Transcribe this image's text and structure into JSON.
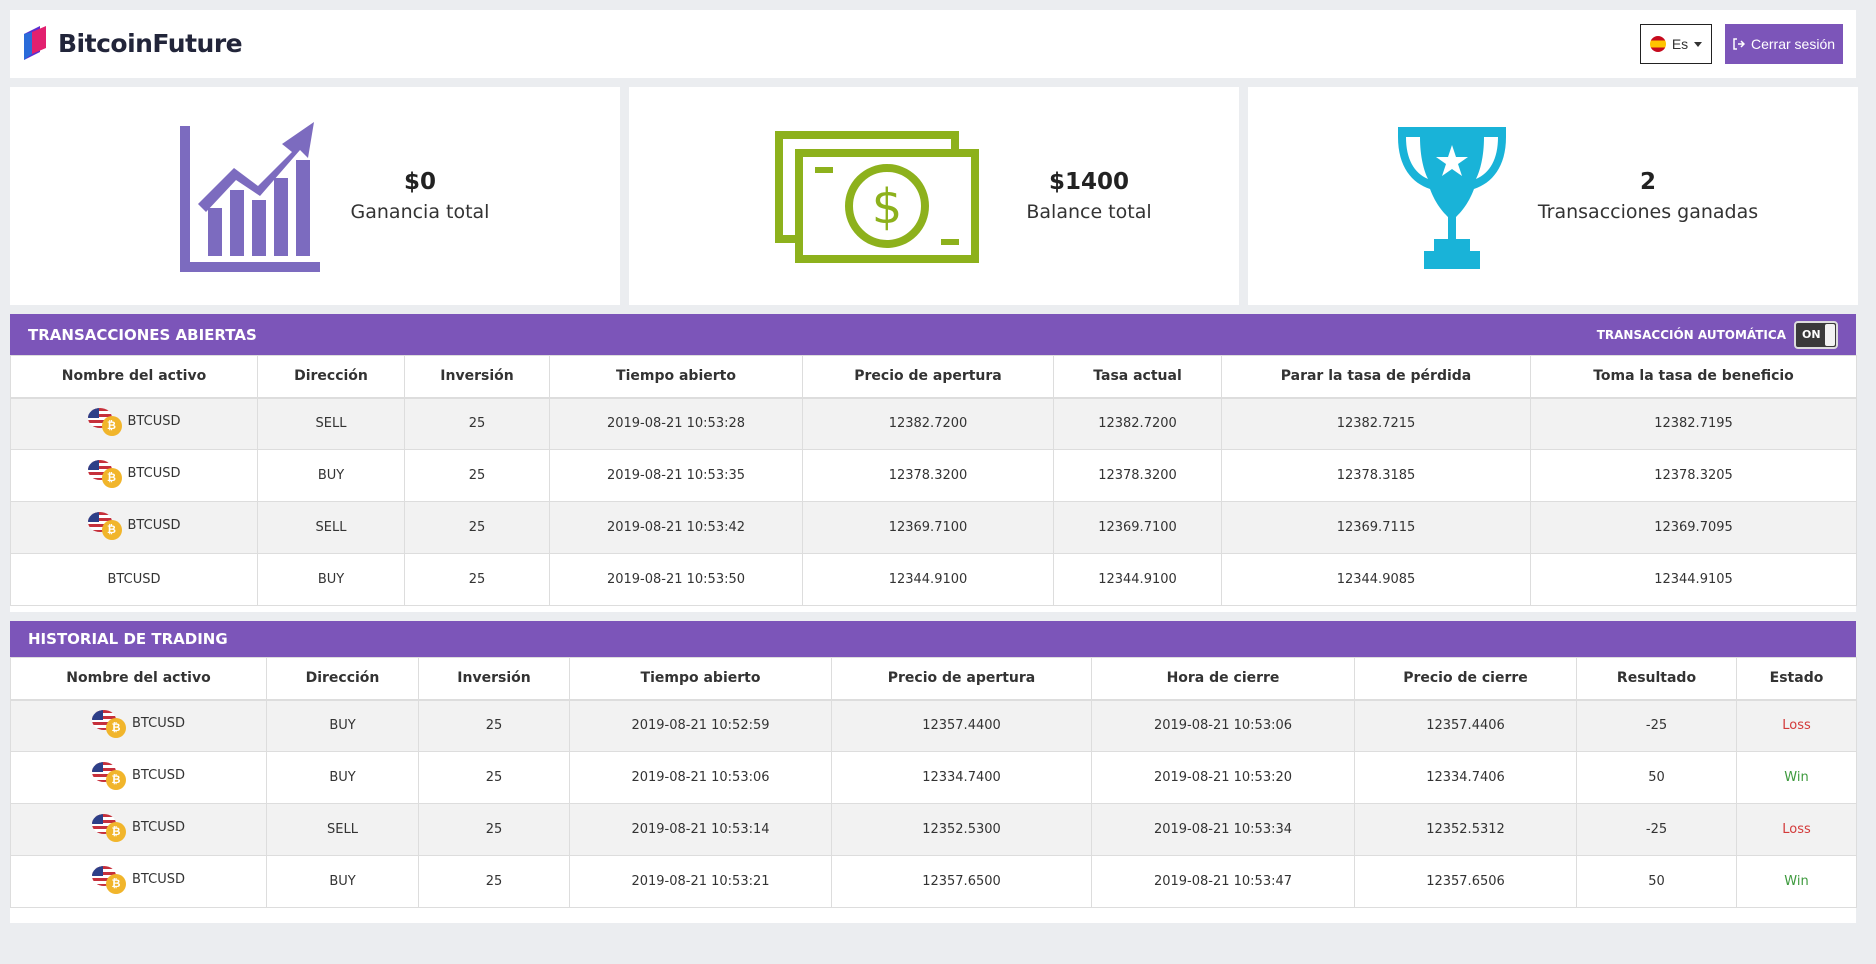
{
  "brand": {
    "name": "BitcoinFuture"
  },
  "header": {
    "lang_label": "Es",
    "logout_label": "Cerrar sesión"
  },
  "colors": {
    "accent": "#7c55b9",
    "chart_icon": "#7c6bbf",
    "money_icon": "#8db11c",
    "trophy_icon": "#19b3d8",
    "loss": "#d33a3a",
    "win": "#3e9a3e"
  },
  "stats": [
    {
      "value": "$0",
      "label": "Ganancia total",
      "icon": "growth-chart-icon"
    },
    {
      "value": "$1400",
      "label": "Balance total",
      "icon": "cash-icon"
    },
    {
      "value": "2",
      "label": "Transacciones ganadas",
      "icon": "trophy-icon"
    }
  ],
  "open_trades": {
    "title": "TRANSACCIONES ABIERTAS",
    "auto_label": "TRANSACCIÓN AUTOMÁTICA",
    "toggle_label": "ON",
    "columns": [
      "Nombre del activo",
      "Dirección",
      "Inversión",
      "Tiempo abierto",
      "Precio de apertura",
      "Tasa actual",
      "Parar la tasa de pérdida",
      "Toma la tasa de beneficio"
    ],
    "rows": [
      {
        "asset": "BTCUSD",
        "direction": "SELL",
        "investment": "25",
        "opened": "2019-08-21 10:53:28",
        "open_price": "12382.7200",
        "current_rate": "12382.7200",
        "stop_loss": "12382.7215",
        "take_profit": "12382.7195"
      },
      {
        "asset": "BTCUSD",
        "direction": "BUY",
        "investment": "25",
        "opened": "2019-08-21 10:53:35",
        "open_price": "12378.3200",
        "current_rate": "12378.3200",
        "stop_loss": "12378.3185",
        "take_profit": "12378.3205"
      },
      {
        "asset": "BTCUSD",
        "direction": "SELL",
        "investment": "25",
        "opened": "2019-08-21 10:53:42",
        "open_price": "12369.7100",
        "current_rate": "12369.7100",
        "stop_loss": "12369.7115",
        "take_profit": "12369.7095"
      },
      {
        "asset": "BTCUSD",
        "direction": "BUY",
        "investment": "25",
        "opened": "2019-08-21 10:53:50",
        "open_price": "12344.9100",
        "current_rate": "12344.9100",
        "stop_loss": "12344.9085",
        "take_profit": "12344.9105"
      }
    ]
  },
  "history": {
    "title": "HISTORIAL DE TRADING",
    "columns": [
      "Nombre del activo",
      "Dirección",
      "Inversión",
      "Tiempo abierto",
      "Precio de apertura",
      "Hora de cierre",
      "Precio de cierre",
      "Resultado",
      "Estado"
    ],
    "rows": [
      {
        "asset": "BTCUSD",
        "direction": "BUY",
        "investment": "25",
        "opened": "2019-08-21 10:52:59",
        "open_price": "12357.4400",
        "closed": "2019-08-21 10:53:06",
        "close_price": "12357.4406",
        "result": "-25",
        "status": "Loss"
      },
      {
        "asset": "BTCUSD",
        "direction": "BUY",
        "investment": "25",
        "opened": "2019-08-21 10:53:06",
        "open_price": "12334.7400",
        "closed": "2019-08-21 10:53:20",
        "close_price": "12334.7406",
        "result": "50",
        "status": "Win"
      },
      {
        "asset": "BTCUSD",
        "direction": "SELL",
        "investment": "25",
        "opened": "2019-08-21 10:53:14",
        "open_price": "12352.5300",
        "closed": "2019-08-21 10:53:34",
        "close_price": "12352.5312",
        "result": "-25",
        "status": "Loss"
      },
      {
        "asset": "BTCUSD",
        "direction": "BUY",
        "investment": "25",
        "opened": "2019-08-21 10:53:21",
        "open_price": "12357.6500",
        "closed": "2019-08-21 10:53:47",
        "close_price": "12357.6506",
        "result": "50",
        "status": "Win"
      }
    ]
  }
}
